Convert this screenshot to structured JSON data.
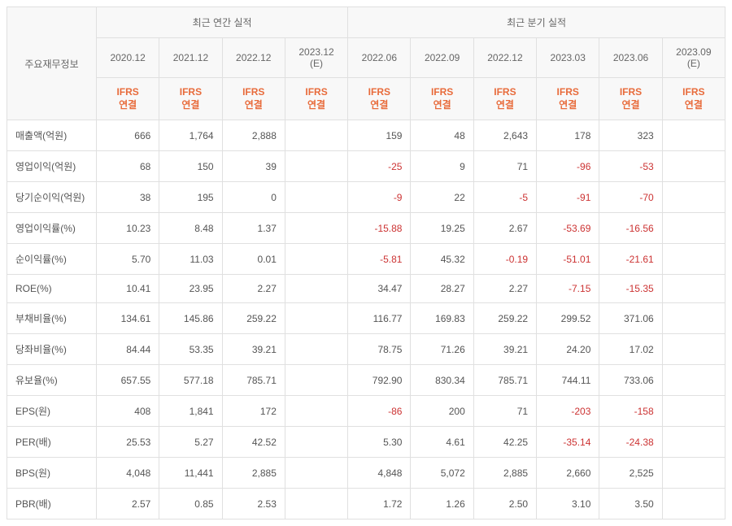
{
  "headers": {
    "rowhead": "주요재무정보",
    "annual_group": "최근 연간 실적",
    "quarter_group": "최근 분기 실적",
    "periods_annual": [
      "2020.12",
      "2021.12",
      "2022.12",
      "2023.12 (E)"
    ],
    "periods_quarter": [
      "2022.06",
      "2022.09",
      "2022.12",
      "2023.03",
      "2023.06",
      "2023.09 (E)"
    ],
    "ifrs_label": "IFRS<br>연결"
  },
  "colors": {
    "ifrs": "#e86b3b",
    "negative": "#cc3333",
    "border": "#e0e0e0",
    "header_bg": "#f8f8f8",
    "text": "#555555"
  },
  "metrics": [
    {
      "label": "매출액(억원)",
      "annual": [
        "666",
        "1,764",
        "2,888",
        ""
      ],
      "quarter": [
        "159",
        "48",
        "2,643",
        "178",
        "323",
        ""
      ]
    },
    {
      "label": "영업이익(억원)",
      "annual": [
        "68",
        "150",
        "39",
        ""
      ],
      "quarter": [
        "-25",
        "9",
        "71",
        "-96",
        "-53",
        ""
      ]
    },
    {
      "label": "당기순이익(억원)",
      "annual": [
        "38",
        "195",
        "0",
        ""
      ],
      "quarter": [
        "-9",
        "22",
        "-5",
        "-91",
        "-70",
        ""
      ]
    },
    {
      "label": "영업이익률(%)",
      "annual": [
        "10.23",
        "8.48",
        "1.37",
        ""
      ],
      "quarter": [
        "-15.88",
        "19.25",
        "2.67",
        "-53.69",
        "-16.56",
        ""
      ]
    },
    {
      "label": "순이익률(%)",
      "annual": [
        "5.70",
        "11.03",
        "0.01",
        ""
      ],
      "quarter": [
        "-5.81",
        "45.32",
        "-0.19",
        "-51.01",
        "-21.61",
        ""
      ]
    },
    {
      "label": "ROE(%)",
      "annual": [
        "10.41",
        "23.95",
        "2.27",
        ""
      ],
      "quarter": [
        "34.47",
        "28.27",
        "2.27",
        "-7.15",
        "-15.35",
        ""
      ]
    },
    {
      "label": "부채비율(%)",
      "annual": [
        "134.61",
        "145.86",
        "259.22",
        ""
      ],
      "quarter": [
        "116.77",
        "169.83",
        "259.22",
        "299.52",
        "371.06",
        ""
      ]
    },
    {
      "label": "당좌비율(%)",
      "annual": [
        "84.44",
        "53.35",
        "39.21",
        ""
      ],
      "quarter": [
        "78.75",
        "71.26",
        "39.21",
        "24.20",
        "17.02",
        ""
      ]
    },
    {
      "label": "유보율(%)",
      "annual": [
        "657.55",
        "577.18",
        "785.71",
        ""
      ],
      "quarter": [
        "792.90",
        "830.34",
        "785.71",
        "744.11",
        "733.06",
        ""
      ]
    },
    {
      "label": "EPS(원)",
      "annual": [
        "408",
        "1,841",
        "172",
        ""
      ],
      "quarter": [
        "-86",
        "200",
        "71",
        "-203",
        "-158",
        ""
      ]
    },
    {
      "label": "PER(배)",
      "annual": [
        "25.53",
        "5.27",
        "42.52",
        ""
      ],
      "quarter": [
        "5.30",
        "4.61",
        "42.25",
        "-35.14",
        "-24.38",
        ""
      ]
    },
    {
      "label": "BPS(원)",
      "annual": [
        "4,048",
        "11,441",
        "2,885",
        ""
      ],
      "quarter": [
        "4,848",
        "5,072",
        "2,885",
        "2,660",
        "2,525",
        ""
      ]
    },
    {
      "label": "PBR(배)",
      "annual": [
        "2.57",
        "0.85",
        "2.53",
        ""
      ],
      "quarter": [
        "1.72",
        "1.26",
        "2.50",
        "3.10",
        "3.50",
        ""
      ]
    }
  ]
}
